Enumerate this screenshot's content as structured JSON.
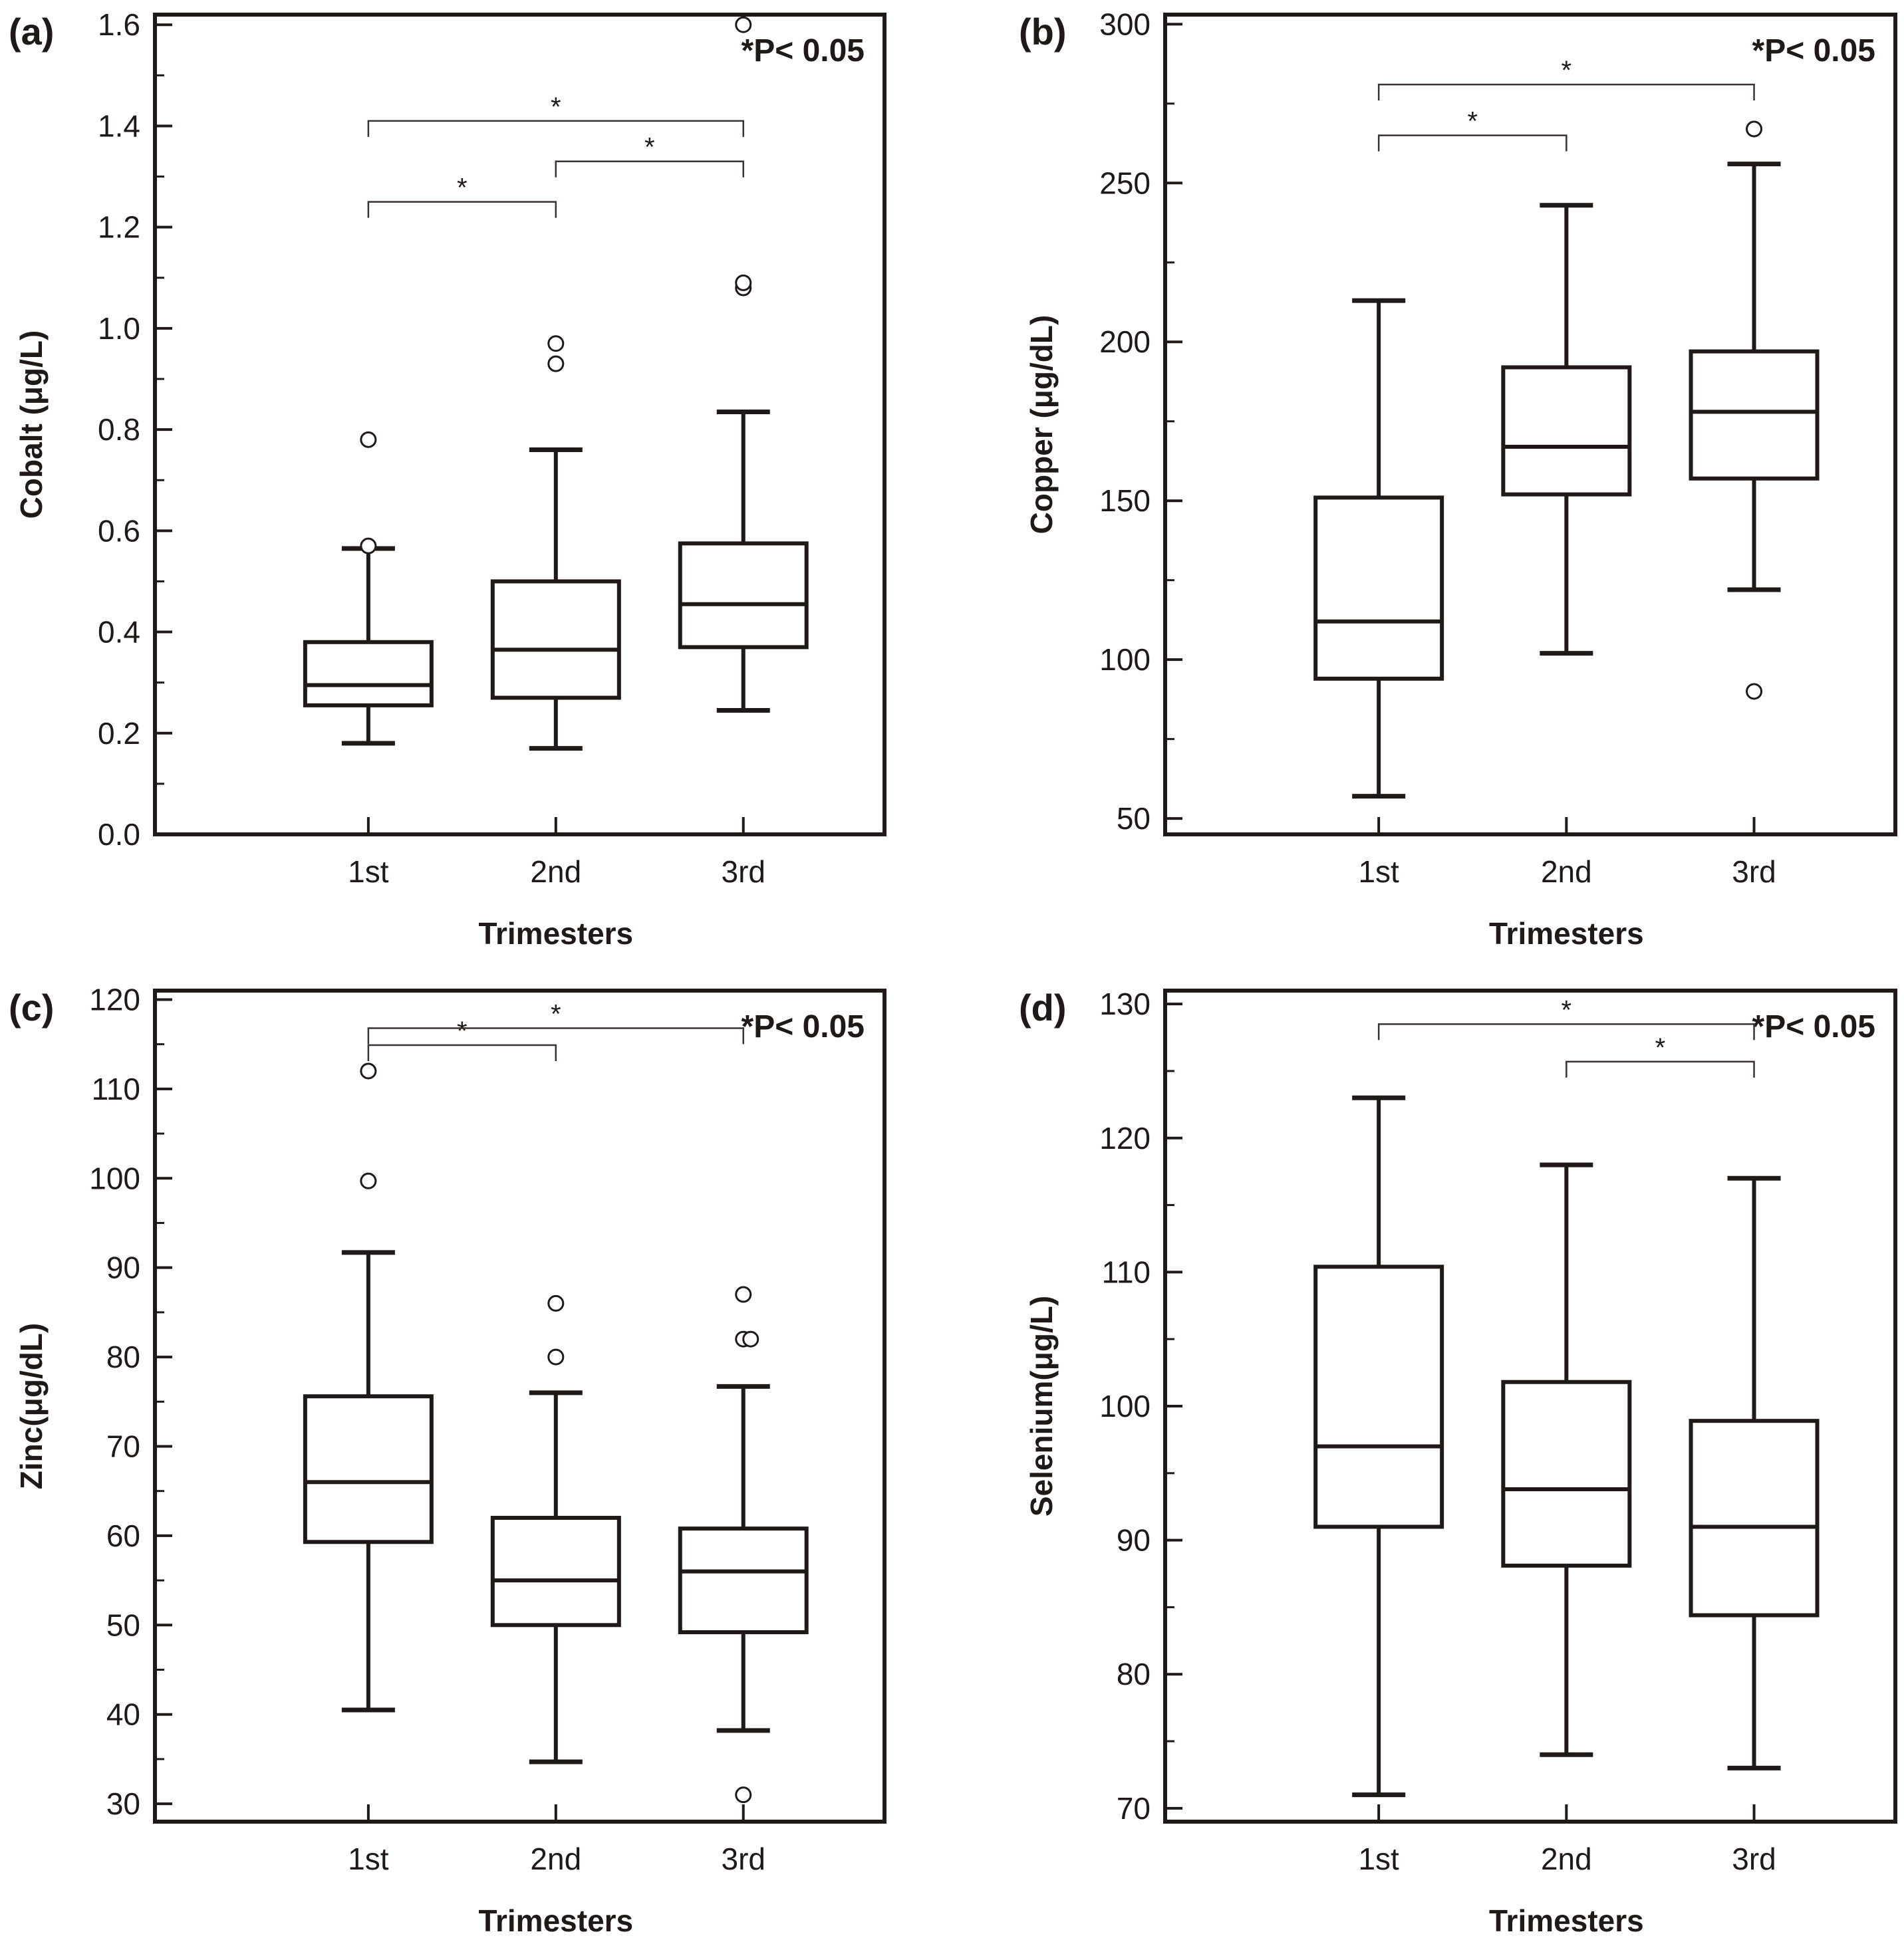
{
  "significance_note": "*P< 0.05",
  "colors": {
    "ink": "#1f1a17",
    "bracket": "#3a3330",
    "background": "#ffffff"
  },
  "chart_data": [
    {
      "panel": "(a)",
      "type": "box",
      "xlabel": "Trimesters",
      "ylabel": "Cobalt (μg/L)",
      "categories": [
        "1st",
        "2nd",
        "3rd"
      ],
      "ylim": [
        0.0,
        1.62
      ],
      "yticks": [
        0.0,
        0.2,
        0.4,
        0.6,
        0.8,
        1.0,
        1.2,
        1.4,
        1.6
      ],
      "ytick_labels": [
        "0.0",
        "0.2",
        "0.4",
        "0.6",
        "0.8",
        "1.0",
        "1.2",
        "1.4",
        "1.6"
      ],
      "grid": false,
      "boxes": [
        {
          "category": "1st",
          "whisker_low": 0.18,
          "q1": 0.255,
          "median": 0.295,
          "q3": 0.38,
          "whisker_high": 0.565,
          "outliers": [
            0.57,
            0.78
          ]
        },
        {
          "category": "2nd",
          "whisker_low": 0.17,
          "q1": 0.27,
          "median": 0.365,
          "q3": 0.5,
          "whisker_high": 0.76,
          "outliers": [
            0.93,
            0.97
          ]
        },
        {
          "category": "3rd",
          "whisker_low": 0.245,
          "q1": 0.37,
          "median": 0.455,
          "q3": 0.575,
          "whisker_high": 0.835,
          "outliers": [
            1.08,
            1.09,
            1.6
          ]
        }
      ],
      "brackets": [
        {
          "from": "1st",
          "to": "2nd",
          "y": 1.25,
          "label": "*"
        },
        {
          "from": "2nd",
          "to": "3rd",
          "y": 1.33,
          "label": "*"
        },
        {
          "from": "1st",
          "to": "3rd",
          "y": 1.41,
          "label": "*"
        }
      ]
    },
    {
      "panel": "(b)",
      "type": "box",
      "xlabel": "Trimesters",
      "ylabel": "Copper (μg/dL)",
      "categories": [
        "1st",
        "2nd",
        "3rd"
      ],
      "ylim": [
        45,
        303
      ],
      "yticks": [
        50,
        100,
        150,
        200,
        250,
        300
      ],
      "ytick_labels": [
        "50",
        "100",
        "150",
        "200",
        "250",
        "300"
      ],
      "grid": false,
      "boxes": [
        {
          "category": "1st",
          "whisker_low": 57,
          "q1": 94,
          "median": 112,
          "q3": 151,
          "whisker_high": 213,
          "outliers": []
        },
        {
          "category": "2nd",
          "whisker_low": 102,
          "q1": 152,
          "median": 167,
          "q3": 192,
          "whisker_high": 243,
          "outliers": []
        },
        {
          "category": "3rd",
          "whisker_low": 122,
          "q1": 157,
          "median": 178,
          "q3": 197,
          "whisker_high": 256,
          "outliers": [
            90,
            267
          ]
        }
      ],
      "brackets": [
        {
          "from": "1st",
          "to": "2nd",
          "y": 265,
          "label": "*"
        },
        {
          "from": "1st",
          "to": "3rd",
          "y": 281,
          "label": "*"
        }
      ]
    },
    {
      "panel": "(c)",
      "type": "box",
      "xlabel": "Trimesters",
      "ylabel": "Zinc(μg/dL)",
      "categories": [
        "1st",
        "2nd",
        "3rd"
      ],
      "ylim": [
        28,
        121
      ],
      "yticks": [
        30,
        40,
        50,
        60,
        70,
        80,
        90,
        100,
        110,
        120
      ],
      "ytick_labels": [
        "30",
        "40",
        "50",
        "60",
        "70",
        "80",
        "90",
        "100",
        "110",
        "120"
      ],
      "grid": false,
      "boxes": [
        {
          "category": "1st",
          "whisker_low": 40.5,
          "q1": 59.3,
          "median": 66,
          "q3": 75.6,
          "whisker_high": 91.7,
          "outliers": [
            99.7,
            112
          ]
        },
        {
          "category": "2nd",
          "whisker_low": 34.7,
          "q1": 50,
          "median": 55,
          "q3": 62,
          "whisker_high": 76,
          "outliers": [
            80,
            86
          ]
        },
        {
          "category": "3rd",
          "whisker_low": 38.2,
          "q1": 49.2,
          "median": 56,
          "q3": 60.8,
          "whisker_high": 76.7,
          "outliers": [
            31,
            82,
            82,
            87
          ]
        }
      ],
      "brackets": [
        {
          "from": "1st",
          "to": "2nd",
          "y": 114.9,
          "label": "*"
        },
        {
          "from": "1st",
          "to": "3rd",
          "y": 116.8,
          "label": "*"
        }
      ]
    },
    {
      "panel": "(d)",
      "type": "box",
      "xlabel": "Trimesters",
      "ylabel": "Selenium(μg/L)",
      "categories": [
        "1st",
        "2nd",
        "3rd"
      ],
      "ylim": [
        69,
        131
      ],
      "yticks": [
        70,
        80,
        90,
        100,
        110,
        120,
        130
      ],
      "ytick_labels": [
        "70",
        "80",
        "90",
        "100",
        "110",
        "120",
        "130"
      ],
      "grid": false,
      "boxes": [
        {
          "category": "1st",
          "whisker_low": 71,
          "q1": 91,
          "median": 97,
          "q3": 110.4,
          "whisker_high": 123,
          "outliers": []
        },
        {
          "category": "2nd",
          "whisker_low": 74,
          "q1": 88.1,
          "median": 93.8,
          "q3": 101.8,
          "whisker_high": 118,
          "outliers": []
        },
        {
          "category": "3rd",
          "whisker_low": 73,
          "q1": 84.4,
          "median": 91,
          "q3": 98.9,
          "whisker_high": 117,
          "outliers": []
        }
      ],
      "brackets": [
        {
          "from": "2nd",
          "to": "3rd",
          "y": 125.7,
          "label": "*"
        },
        {
          "from": "1st",
          "to": "3rd",
          "y": 128.5,
          "label": "*"
        }
      ]
    }
  ]
}
